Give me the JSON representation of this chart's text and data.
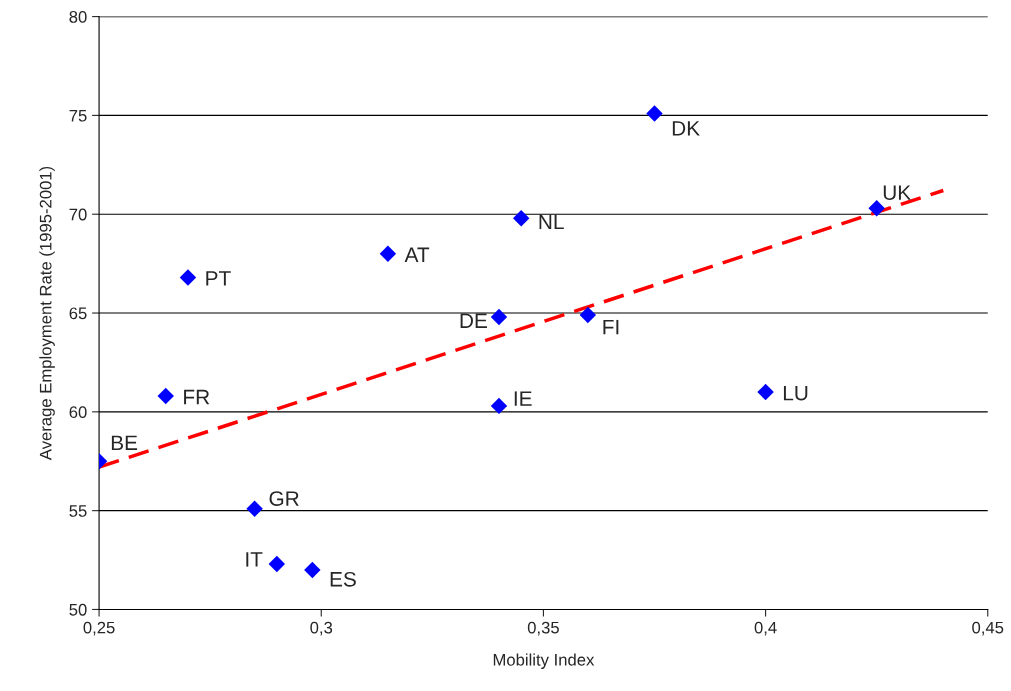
{
  "chart_data": {
    "type": "scatter",
    "xlabel": "Mobility Index",
    "ylabel": "Average Employment Rate (1995-2001)",
    "xlim": [
      0.25,
      0.45
    ],
    "ylim": [
      50,
      80
    ],
    "xticks": [
      {
        "value": 0.25,
        "label": "0,25"
      },
      {
        "value": 0.3,
        "label": "0,3"
      },
      {
        "value": 0.35,
        "label": "0,35"
      },
      {
        "value": 0.4,
        "label": "0,4"
      },
      {
        "value": 0.45,
        "label": "0,45"
      }
    ],
    "yticks": [
      50,
      55,
      60,
      65,
      70,
      75,
      80
    ],
    "grid": "y",
    "legend": false,
    "series": [
      {
        "color": "#0000ff",
        "marker": "diamond",
        "x": [
          0.25,
          0.265,
          0.27,
          0.285,
          0.29,
          0.298,
          0.315,
          0.34,
          0.34,
          0.345,
          0.36,
          0.375,
          0.4,
          0.425
        ],
        "values": [
          57.5,
          60.8,
          66.8,
          55.1,
          52.3,
          52.0,
          68.0,
          64.8,
          60.3,
          69.8,
          64.9,
          75.1,
          61.0,
          70.3
        ]
      },
      {
        "type": "line",
        "color": "#ff0000",
        "line_style": "dashed",
        "marker": "none",
        "x": [
          0.25,
          0.44
        ],
        "values": [
          57.2,
          71.2
        ]
      }
    ],
    "annotations": [
      {
        "text": "BE",
        "x": 0.25,
        "y": 57.5
      },
      {
        "text": "FR",
        "x": 0.265,
        "y": 60.8
      },
      {
        "text": "PT",
        "x": 0.27,
        "y": 66.8
      },
      {
        "text": "GR",
        "x": 0.285,
        "y": 55.1
      },
      {
        "text": "IT",
        "x": 0.29,
        "y": 52.3
      },
      {
        "text": "ES",
        "x": 0.298,
        "y": 52.0
      },
      {
        "text": "AT",
        "x": 0.315,
        "y": 68.0
      },
      {
        "text": "DE",
        "x": 0.34,
        "y": 64.8
      },
      {
        "text": "IE",
        "x": 0.34,
        "y": 60.3
      },
      {
        "text": "NL",
        "x": 0.345,
        "y": 69.8
      },
      {
        "text": "FI",
        "x": 0.36,
        "y": 64.9
      },
      {
        "text": "DK",
        "x": 0.375,
        "y": 75.1
      },
      {
        "text": "LU",
        "x": 0.4,
        "y": 61.0
      },
      {
        "text": "UK",
        "x": 0.425,
        "y": 70.3
      }
    ]
  }
}
